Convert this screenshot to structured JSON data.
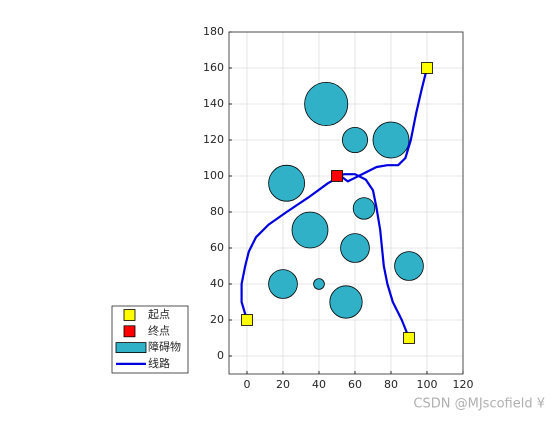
{
  "chart_data": {
    "type": "path",
    "xlim": [
      -10,
      120
    ],
    "ylim": [
      -10,
      180
    ],
    "xticks": [
      0,
      20,
      40,
      60,
      80,
      100,
      120
    ],
    "yticks": [
      0,
      20,
      40,
      60,
      80,
      100,
      120,
      140,
      160,
      180
    ],
    "grid": true,
    "legend": "outside-lower-left",
    "obstacles": {
      "name": "障碍物",
      "color": "#31b1c8",
      "x": [
        44,
        60,
        80,
        22,
        65,
        35,
        60,
        20,
        40,
        55,
        90
      ],
      "y": [
        140,
        120,
        120,
        96,
        82,
        70,
        60,
        40,
        40,
        30,
        50
      ],
      "r": [
        12,
        7,
        10,
        10,
        6,
        10,
        8,
        8,
        3,
        9,
        8
      ]
    },
    "start": {
      "name": "起点",
      "color": "#ffff00",
      "x": [
        0,
        100,
        90
      ],
      "y": [
        20,
        160,
        10
      ]
    },
    "end": {
      "name": "终点",
      "color": "#ff0000",
      "x": [
        50
      ],
      "y": [
        100
      ]
    },
    "route": {
      "name": "线路",
      "color": "#0000e0",
      "x": [
        0,
        -3,
        -3,
        -1,
        1,
        5,
        12,
        22,
        34,
        45,
        52,
        56,
        60,
        66,
        72,
        78,
        84,
        88,
        91,
        94,
        97,
        100,
        null,
        90,
        86,
        81,
        78,
        76,
        75,
        74,
        72,
        70,
        66,
        60,
        54,
        50
      ],
      "y": [
        20,
        30,
        40,
        50,
        58,
        66,
        73,
        80,
        88,
        96,
        100,
        97,
        99,
        102,
        105,
        106,
        106,
        110,
        120,
        135,
        148,
        160,
        null,
        10,
        20,
        30,
        40,
        50,
        60,
        70,
        82,
        92,
        98,
        101,
        101,
        100
      ]
    },
    "watermark": "CSDN @MJscofield ¥"
  }
}
